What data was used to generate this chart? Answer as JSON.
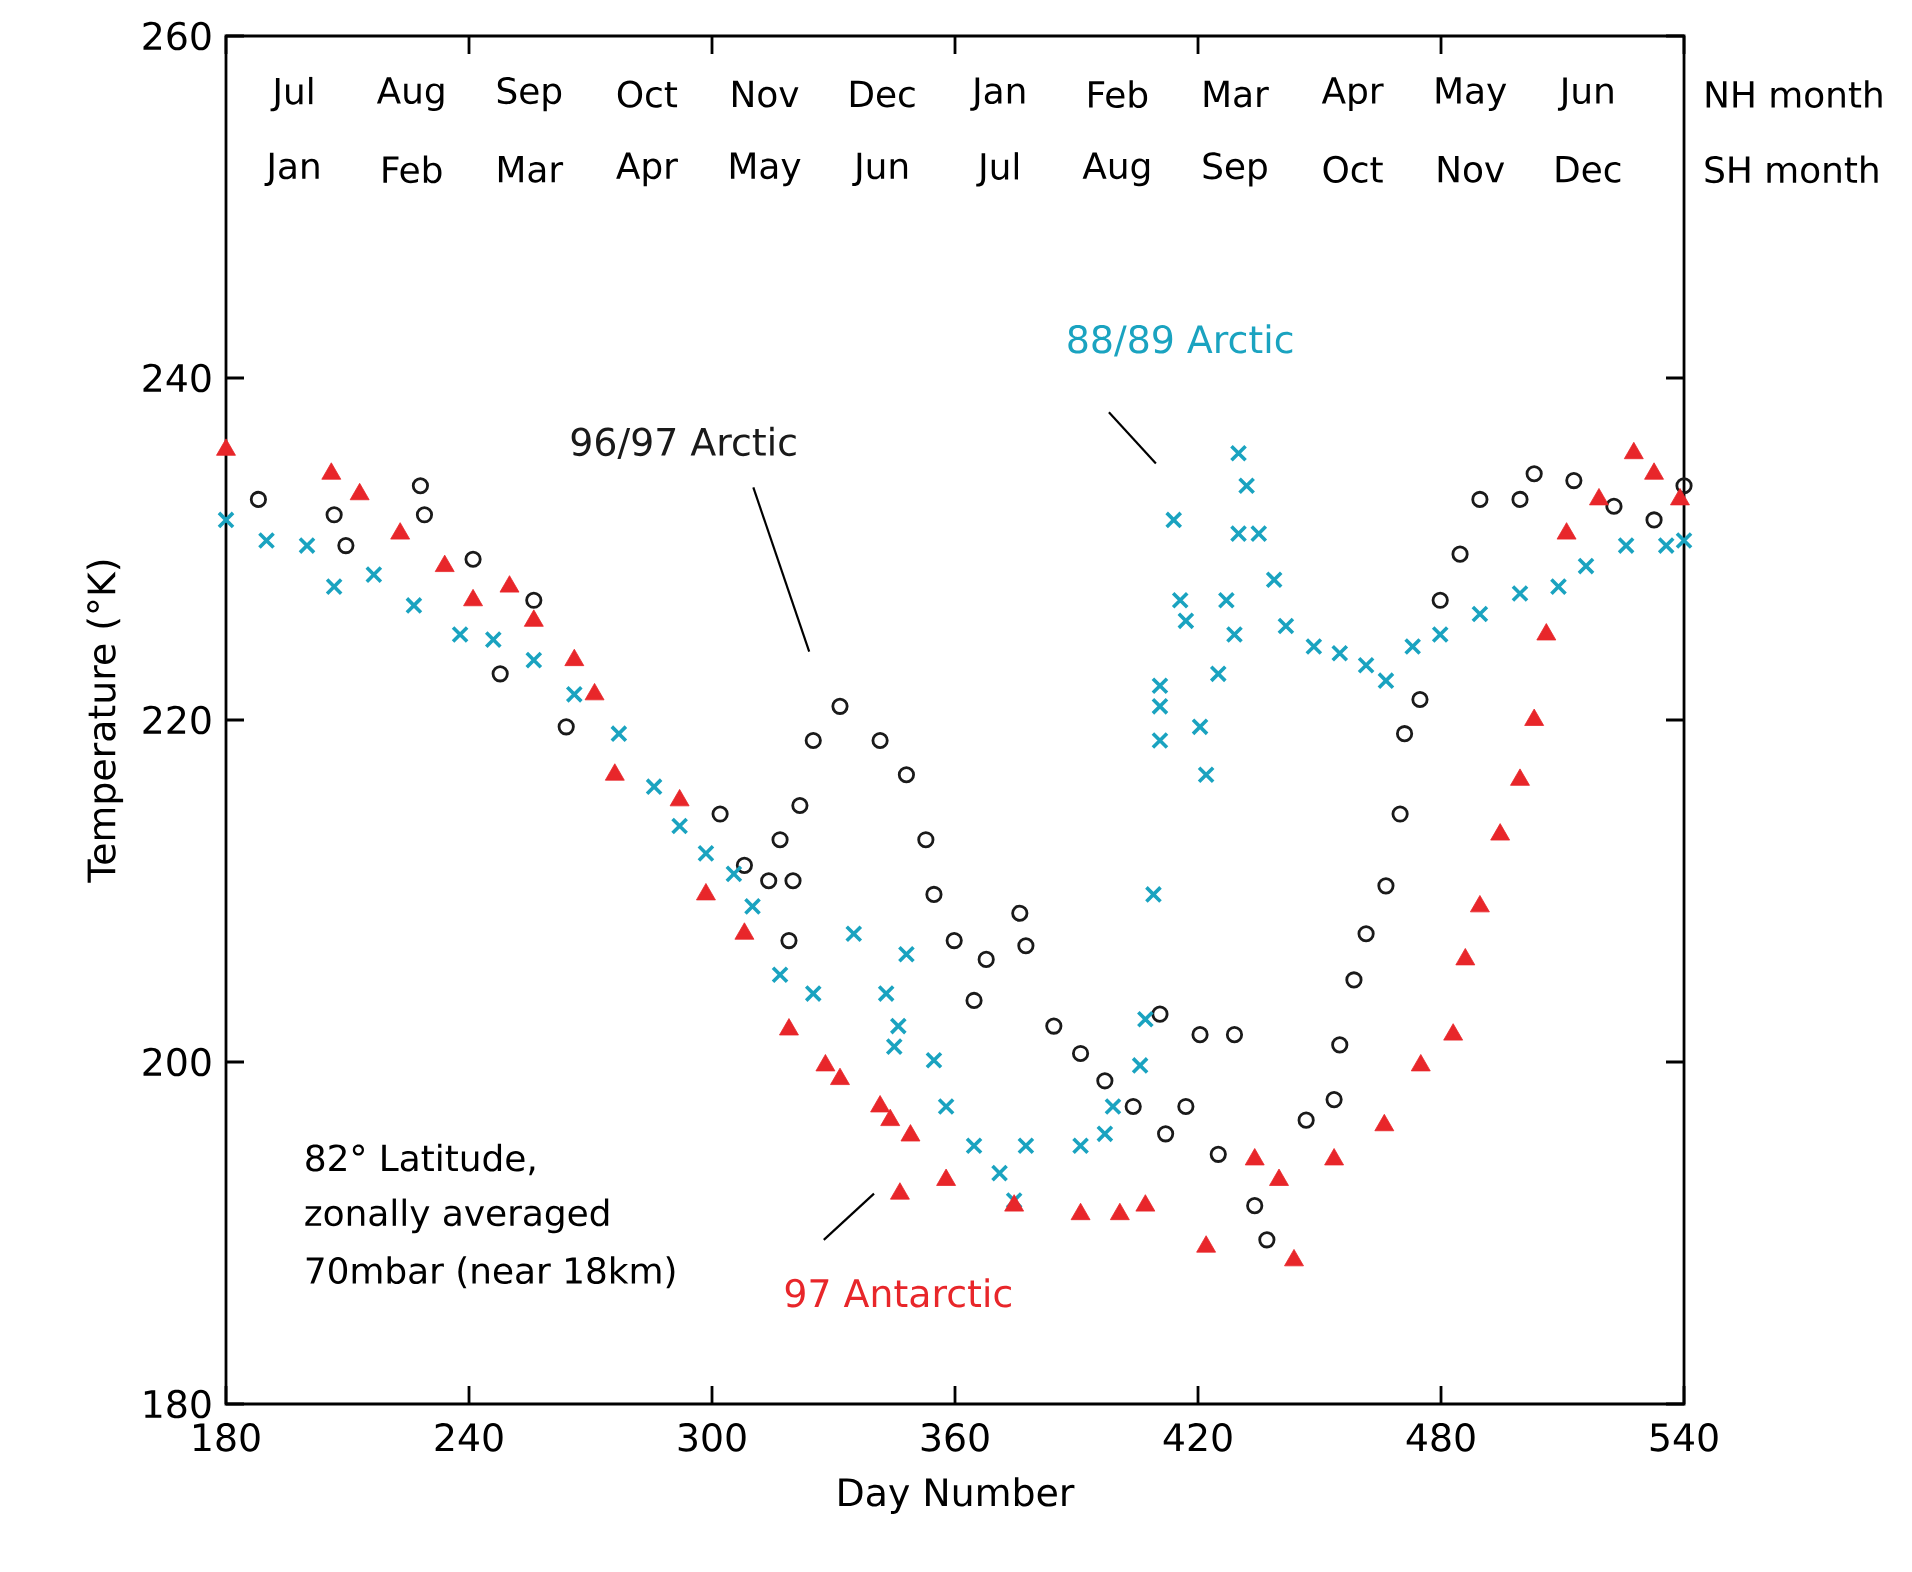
{
  "chart_data": {
    "type": "scatter",
    "xlabel": "Day Number",
    "ylabel": "Temperature (°K)",
    "xlim": [
      180,
      540
    ],
    "ylim": [
      180,
      260
    ],
    "xticks": [
      180,
      240,
      300,
      360,
      420,
      480,
      540
    ],
    "yticks": [
      180,
      200,
      220,
      240,
      260
    ],
    "grid": false,
    "legend": false,
    "annotations": [
      "Jul",
      "Aug",
      "Sep",
      "Oct",
      "Nov",
      "Dec",
      "Jan",
      "Feb",
      "Mar",
      "Apr",
      "May",
      "Jun",
      "NH month",
      "Jan",
      "Feb",
      "Mar",
      "Apr",
      "May",
      "Jun",
      "Jul",
      "Aug",
      "Sep",
      "Oct",
      "Nov",
      "Dec",
      "SH month",
      "82° Latitude,",
      "zonally averaged",
      "70mbar (near 18km)"
    ],
    "series": [
      {
        "name": "96/97 Arctic",
        "color": "#1a1a1a",
        "marker": "circle",
        "x": [
          188,
          206.7,
          209.6,
          228,
          229,
          241,
          247.7,
          256,
          264,
          302,
          308,
          314,
          316.8,
          319,
          320,
          321.7,
          325,
          331.6,
          341.5,
          348,
          352.8,
          354.8,
          359.8,
          364.7,
          367.7,
          376,
          377.5,
          384.4,
          391,
          397,
          404,
          410.6,
          412,
          417,
          420.5,
          425,
          429,
          434,
          437,
          446.7,
          453.6,
          455,
          458.5,
          461.5,
          466.4,
          469.9,
          471,
          474.8,
          479.8,
          484.7,
          489.6,
          499.5,
          503,
          512.8,
          522.7,
          532.6,
          540
        ],
        "values": [
          232.9,
          232,
          230.2,
          233.7,
          232,
          229.4,
          222.7,
          227,
          219.6,
          214.5,
          211.5,
          210.6,
          213,
          207.1,
          210.6,
          215,
          218.8,
          220.8,
          218.8,
          216.8,
          213,
          209.8,
          207.1,
          203.6,
          206,
          208.7,
          206.8,
          202.1,
          200.5,
          198.9,
          197.4,
          202.8,
          195.8,
          197.4,
          201.6,
          194.6,
          201.6,
          191.6,
          189.6,
          196.6,
          197.8,
          201,
          204.8,
          207.5,
          210.3,
          214.5,
          219.2,
          221.2,
          227,
          229.7,
          232.9,
          232.9,
          234.4,
          234,
          232.5,
          231.7,
          233.7
        ]
      },
      {
        "name": "88/89 Arctic",
        "color": "#1aa3c0",
        "marker": "cross",
        "x": [
          180,
          190,
          200,
          206.7,
          216.5,
          226.4,
          237.8,
          246,
          256,
          266,
          277,
          285.7,
          292,
          298.5,
          305.4,
          310,
          316.8,
          325,
          335,
          343,
          345,
          346,
          348,
          354.8,
          357.8,
          364.7,
          371,
          374.6,
          377.5,
          391,
          397,
          399,
          405.7,
          407,
          409,
          410.6,
          410.6,
          410.6,
          414,
          415.6,
          417,
          420.5,
          422,
          425,
          427,
          429,
          430,
          430,
          432,
          435,
          438.8,
          441.7,
          448.6,
          455,
          461.5,
          466.4,
          473,
          479.8,
          489.6,
          499.5,
          509,
          515.8,
          525.7,
          535.6,
          540
        ],
        "values": [
          231.7,
          230.5,
          230.2,
          227.8,
          228.5,
          226.7,
          225,
          224.7,
          223.5,
          221.5,
          219.2,
          216.1,
          213.8,
          212.2,
          211,
          209.1,
          205.1,
          204,
          207.5,
          204,
          200.9,
          202.1,
          206.3,
          200.1,
          197.4,
          195.1,
          193.5,
          191.9,
          195.1,
          195.1,
          195.8,
          197.4,
          199.8,
          202.5,
          209.8,
          220.8,
          222,
          218.8,
          231.7,
          227,
          225.8,
          219.6,
          216.8,
          222.7,
          227,
          225,
          230.9,
          235.6,
          233.7,
          230.9,
          228.2,
          225.5,
          224.3,
          223.9,
          223.2,
          222.3,
          224.3,
          225,
          226.2,
          227.4,
          227.8,
          229,
          230.2,
          230.2,
          230.5
        ]
      },
      {
        "name": "97 Antarctic",
        "color": "#e8262a",
        "marker": "triangle",
        "x": [
          180,
          206,
          213,
          223,
          234,
          241,
          250,
          256,
          266,
          271,
          276,
          292,
          298.5,
          308,
          319,
          328,
          331.6,
          341.5,
          344,
          349,
          346.4,
          357.8,
          374.6,
          391,
          400.7,
          407,
          422,
          434,
          440,
          443.7,
          453.6,
          466,
          475,
          483,
          486,
          489.6,
          494.6,
          499.5,
          503,
          506,
          511,
          519,
          527.6,
          532.6,
          539
        ],
        "values": [
          235.8,
          234.4,
          233.2,
          230.9,
          229,
          227,
          227.8,
          225.8,
          223.5,
          221.5,
          216.8,
          215.3,
          209.8,
          207.5,
          201.9,
          199.8,
          199,
          197.4,
          196.6,
          195.7,
          192.3,
          193.1,
          191.6,
          191.1,
          191.1,
          191.6,
          189.2,
          194.3,
          193.1,
          188.4,
          194.3,
          196.3,
          199.8,
          201.6,
          206,
          209.1,
          213.3,
          216.5,
          220,
          225,
          230.9,
          232.9,
          235.6,
          234.4,
          232.9
        ]
      }
    ]
  }
}
